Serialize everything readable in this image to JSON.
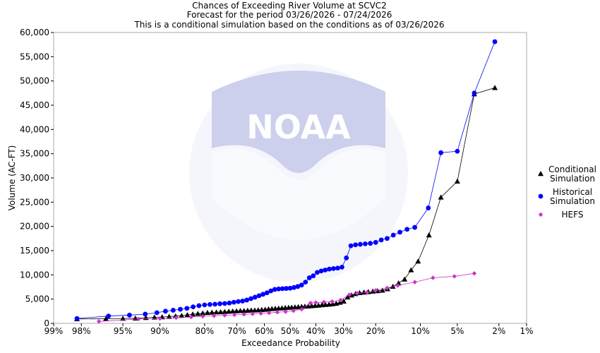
{
  "chart_data": {
    "type": "scatter",
    "title": [
      "Chances of Exceeding River Volume at SCVC2",
      "Forecast for the period 03/26/2026 - 07/24/2026",
      "This is a conditional simulation based on the conditions as of 03/26/2026"
    ],
    "xlabel": "Exceedance Probability",
    "ylabel": "Volume (AC-FT)",
    "x_scale": "normal-probability",
    "x_ticks": [
      {
        "p": 99,
        "label": "99%"
      },
      {
        "p": 98,
        "label": "98%"
      },
      {
        "p": 95,
        "label": "95%"
      },
      {
        "p": 90,
        "label": "90%"
      },
      {
        "p": 80,
        "label": "80%"
      },
      {
        "p": 70,
        "label": "70%"
      },
      {
        "p": 60,
        "label": "60%"
      },
      {
        "p": 50,
        "label": "50%"
      },
      {
        "p": 40,
        "label": "40%"
      },
      {
        "p": 30,
        "label": "30%"
      },
      {
        "p": 20,
        "label": "20%"
      },
      {
        "p": 10,
        "label": "10%"
      },
      {
        "p": 5,
        "label": "5%"
      },
      {
        "p": 2,
        "label": "2%"
      },
      {
        "p": 1,
        "label": "1%"
      }
    ],
    "ylim": [
      0,
      60000
    ],
    "y_ticks": [
      {
        "v": 0,
        "label": "0"
      },
      {
        "v": 5000,
        "label": "5,000"
      },
      {
        "v": 10000,
        "label": "10,000"
      },
      {
        "v": 15000,
        "label": "15,000"
      },
      {
        "v": 20000,
        "label": "20,000"
      },
      {
        "v": 25000,
        "label": "25,000"
      },
      {
        "v": 30000,
        "label": "30,000"
      },
      {
        "v": 35000,
        "label": "35,000"
      },
      {
        "v": 40000,
        "label": "40,000"
      },
      {
        "v": 45000,
        "label": "45,000"
      },
      {
        "v": 50000,
        "label": "50,000"
      },
      {
        "v": 55000,
        "label": "55,000"
      },
      {
        "v": 60000,
        "label": "60,000"
      }
    ],
    "legend_position": "right",
    "series": [
      {
        "name": [
          "Conditional",
          "Simulation"
        ],
        "marker": "triangle",
        "color": "#000000",
        "points": [
          [
            98.2,
            900
          ],
          [
            96.5,
            950
          ],
          [
            95.0,
            1000
          ],
          [
            93.6,
            1050
          ],
          [
            92.2,
            1150
          ],
          [
            90.9,
            1250
          ],
          [
            89.6,
            1300
          ],
          [
            88.3,
            1400
          ],
          [
            87.0,
            1500
          ],
          [
            85.7,
            1600
          ],
          [
            84.4,
            1750
          ],
          [
            83.1,
            1900
          ],
          [
            81.8,
            2000
          ],
          [
            80.5,
            2100
          ],
          [
            79.2,
            2200
          ],
          [
            77.9,
            2250
          ],
          [
            76.6,
            2300
          ],
          [
            75.3,
            2350
          ],
          [
            74.0,
            2400
          ],
          [
            72.7,
            2450
          ],
          [
            71.4,
            2500
          ],
          [
            70.1,
            2550
          ],
          [
            68.8,
            2600
          ],
          [
            67.5,
            2600
          ],
          [
            66.2,
            2650
          ],
          [
            64.9,
            2700
          ],
          [
            63.6,
            2700
          ],
          [
            62.3,
            2750
          ],
          [
            61.0,
            2800
          ],
          [
            59.7,
            2850
          ],
          [
            58.4,
            2950
          ],
          [
            57.1,
            3000
          ],
          [
            55.8,
            3050
          ],
          [
            54.5,
            3100
          ],
          [
            53.2,
            3150
          ],
          [
            51.9,
            3200
          ],
          [
            50.6,
            3250
          ],
          [
            49.4,
            3300
          ],
          [
            48.1,
            3350
          ],
          [
            46.8,
            3400
          ],
          [
            45.5,
            3450
          ],
          [
            44.2,
            3500
          ],
          [
            42.9,
            3550
          ],
          [
            41.6,
            3600
          ],
          [
            40.3,
            3650
          ],
          [
            39.0,
            3700
          ],
          [
            37.7,
            3800
          ],
          [
            36.4,
            3850
          ],
          [
            35.1,
            3900
          ],
          [
            33.8,
            4000
          ],
          [
            32.5,
            4100
          ],
          [
            31.2,
            4300
          ],
          [
            29.9,
            4550
          ],
          [
            28.6,
            5400
          ],
          [
            27.3,
            5800
          ],
          [
            26.0,
            6100
          ],
          [
            24.7,
            6300
          ],
          [
            23.4,
            6400
          ],
          [
            22.1,
            6500
          ],
          [
            20.8,
            6600
          ],
          [
            19.5,
            6700
          ],
          [
            18.2,
            6800
          ],
          [
            16.9,
            7100
          ],
          [
            15.6,
            7600
          ],
          [
            14.3,
            8300
          ],
          [
            13.0,
            9100
          ],
          [
            11.7,
            11000
          ],
          [
            10.4,
            12800
          ],
          [
            8.6,
            18200
          ],
          [
            6.9,
            26000
          ],
          [
            5.0,
            29300
          ],
          [
            3.5,
            47300
          ],
          [
            2.2,
            48600
          ]
        ]
      },
      {
        "name": [
          "Historical",
          "Simulation"
        ],
        "marker": "circle",
        "color": "#0000ff",
        "points": [
          [
            98.2,
            1000
          ],
          [
            96.3,
            1500
          ],
          [
            94.3,
            1700
          ],
          [
            92.3,
            1900
          ],
          [
            90.5,
            2200
          ],
          [
            89.0,
            2500
          ],
          [
            87.5,
            2700
          ],
          [
            86.0,
            2900
          ],
          [
            84.5,
            3100
          ],
          [
            83.0,
            3400
          ],
          [
            81.5,
            3650
          ],
          [
            80.0,
            3800
          ],
          [
            78.5,
            3900
          ],
          [
            77.0,
            3950
          ],
          [
            75.5,
            4050
          ],
          [
            74.0,
            4100
          ],
          [
            72.5,
            4200
          ],
          [
            71.0,
            4350
          ],
          [
            69.5,
            4500
          ],
          [
            68.0,
            4600
          ],
          [
            66.5,
            4800
          ],
          [
            65.0,
            5100
          ],
          [
            63.5,
            5400
          ],
          [
            62.0,
            5700
          ],
          [
            60.5,
            6000
          ],
          [
            59.0,
            6300
          ],
          [
            57.5,
            6700
          ],
          [
            56.0,
            7000
          ],
          [
            54.5,
            7100
          ],
          [
            53.0,
            7150
          ],
          [
            51.5,
            7200
          ],
          [
            50.0,
            7250
          ],
          [
            48.5,
            7400
          ],
          [
            47.0,
            7600
          ],
          [
            45.5,
            7900
          ],
          [
            44.0,
            8500
          ],
          [
            42.5,
            9400
          ],
          [
            41.0,
            9800
          ],
          [
            39.5,
            10500
          ],
          [
            38.0,
            10800
          ],
          [
            36.5,
            11000
          ],
          [
            35.0,
            11200
          ],
          [
            33.5,
            11300
          ],
          [
            32.0,
            11400
          ],
          [
            30.5,
            11600
          ],
          [
            29.0,
            13500
          ],
          [
            27.5,
            16000
          ],
          [
            26.0,
            16200
          ],
          [
            24.5,
            16300
          ],
          [
            23.0,
            16400
          ],
          [
            21.5,
            16500
          ],
          [
            20.0,
            16700
          ],
          [
            18.5,
            17200
          ],
          [
            17.0,
            17500
          ],
          [
            15.5,
            18200
          ],
          [
            14.0,
            18800
          ],
          [
            12.5,
            19400
          ],
          [
            11.0,
            19800
          ],
          [
            8.7,
            23800
          ],
          [
            6.9,
            35200
          ],
          [
            5.0,
            35500
          ],
          [
            3.5,
            47500
          ],
          [
            2.2,
            58100
          ]
        ]
      },
      {
        "name": [
          "HEFS"
        ],
        "marker": "diamond",
        "color": "#cc33cc",
        "points": [
          [
            97.0,
            400
          ],
          [
            93.2,
            900
          ],
          [
            90.0,
            1000
          ],
          [
            86.9,
            1150
          ],
          [
            83.5,
            1300
          ],
          [
            80.5,
            1450
          ],
          [
            77.3,
            1550
          ],
          [
            74.0,
            1650
          ],
          [
            70.8,
            1750
          ],
          [
            67.5,
            1850
          ],
          [
            64.4,
            1950
          ],
          [
            61.3,
            2050
          ],
          [
            58.2,
            2150
          ],
          [
            55.0,
            2300
          ],
          [
            51.8,
            2400
          ],
          [
            48.7,
            2600
          ],
          [
            45.5,
            2900
          ],
          [
            42.0,
            4200
          ],
          [
            40.0,
            4300
          ],
          [
            37.0,
            4400
          ],
          [
            34.0,
            4500
          ],
          [
            31.0,
            4800
          ],
          [
            28.0,
            5900
          ],
          [
            25.5,
            6200
          ],
          [
            22.5,
            6400
          ],
          [
            20.0,
            6800
          ],
          [
            17.0,
            7300
          ],
          [
            14.5,
            7800
          ],
          [
            11.0,
            8500
          ],
          [
            8.0,
            9400
          ],
          [
            5.3,
            9700
          ],
          [
            3.5,
            10300
          ]
        ]
      }
    ]
  }
}
